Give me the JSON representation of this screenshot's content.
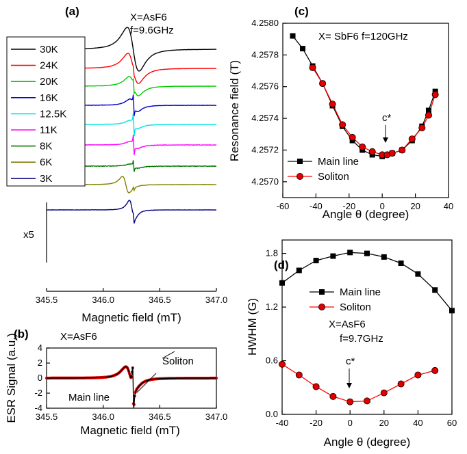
{
  "chart_data": [
    {
      "panel": "(a)",
      "type": "line",
      "title": "",
      "annotations": [
        "X=AsF6",
        "f=9.6GHz"
      ],
      "xlabel": "Magnetic field (mT)",
      "ylabel": "",
      "xlim": [
        345.5,
        347.0
      ],
      "xticks": [
        "345.5",
        "346.0",
        "346.5",
        "347.0"
      ],
      "legend_position": "top-left",
      "scale_note": "x5",
      "series": [
        {
          "name": "30K",
          "color": "#000000",
          "kind": "broad",
          "center": 346.265,
          "halfwidth": 0.09,
          "amp": 32,
          "offset": 72,
          "narrow_amp": 0,
          "noise": 0.3
        },
        {
          "name": "24K",
          "color": "#ff0000",
          "kind": "broad",
          "center": 346.265,
          "halfwidth": 0.08,
          "amp": 22,
          "offset": 100,
          "narrow_amp": 4,
          "noise": 0.3
        },
        {
          "name": "20K",
          "color": "#00cc00",
          "kind": "broad",
          "center": 346.27,
          "halfwidth": 0.07,
          "amp": 14,
          "offset": 126,
          "narrow_amp": 8,
          "noise": 0.4
        },
        {
          "name": "16K",
          "color": "#0000cc",
          "kind": "broad",
          "center": 346.27,
          "halfwidth": 0.06,
          "amp": 9,
          "offset": 154,
          "narrow_amp": 14,
          "noise": 0.5
        },
        {
          "name": "12.5K",
          "color": "#00e5e5",
          "kind": "broad",
          "center": 346.27,
          "halfwidth": 0.06,
          "amp": 6,
          "offset": 182,
          "narrow_amp": 16,
          "noise": 0.5
        },
        {
          "name": "11K",
          "color": "#ff00ff",
          "kind": "broad",
          "center": 346.27,
          "halfwidth": 0.06,
          "amp": 5,
          "offset": 212,
          "narrow_amp": 14,
          "noise": 0.6
        },
        {
          "name": "8K",
          "color": "#007a00",
          "kind": "broad",
          "center": 346.27,
          "halfwidth": 0.06,
          "amp": 3,
          "offset": 243,
          "narrow_amp": 8,
          "noise": 0.9
        },
        {
          "name": "6K",
          "color": "#808000",
          "kind": "broad",
          "center": 346.2,
          "halfwidth": 0.05,
          "amp": 12,
          "offset": 270,
          "narrow_amp": 3,
          "noise": 0.4
        },
        {
          "name": "3K",
          "color": "#000080",
          "kind": "broad",
          "center": 346.255,
          "halfwidth": 0.04,
          "amp": 14,
          "offset": 307,
          "narrow_amp": 6,
          "noise": 0.4
        }
      ]
    },
    {
      "panel": "(b)",
      "type": "line",
      "title": "",
      "annotations": [
        "X=AsF6",
        "Soliton",
        "Main line"
      ],
      "xlabel": "Magnetic field (mT)",
      "ylabel": "ESR Signal (a.u.)",
      "xlim": [
        345.5,
        347.0
      ],
      "ylim": [
        -4,
        4
      ],
      "xticks": [
        "345.5",
        "346.0",
        "346.5",
        "347.0"
      ],
      "yticks": [
        "-4",
        "-2",
        "0",
        "2",
        "4"
      ],
      "main_line": {
        "center": 346.24,
        "halfwidth": 0.07,
        "peak": 1.5
      },
      "soliton": {
        "center": 346.265,
        "halfwidth": 0.008,
        "peak": 3.3
      }
    },
    {
      "panel": "(c)",
      "type": "line",
      "title": "",
      "annotations": [
        "X= SbF6  f=120GHz",
        "c*"
      ],
      "xlabel": "Angle θ (degree)",
      "ylabel": "Resonance field (T)",
      "xlim": [
        -60,
        40
      ],
      "ylim": [
        4.2569,
        4.258
      ],
      "xticks": [
        -60,
        -40,
        -20,
        0,
        20,
        40
      ],
      "yticks": [
        "4.2570",
        "4.2572",
        "4.2574",
        "4.2576",
        "4.2578",
        "4.2580"
      ],
      "legend_position": "bottom-left",
      "series": [
        {
          "name": "Main line",
          "color": "#000000",
          "marker": "square",
          "x": [
            -54,
            -48,
            -42,
            -36,
            -30,
            -24,
            -18,
            -12,
            -6,
            0,
            6,
            12,
            18,
            24,
            28,
            32
          ],
          "y": [
            4.25792,
            4.25784,
            4.25773,
            4.25762,
            4.25748,
            4.25735,
            4.25726,
            4.2572,
            4.25717,
            4.25716,
            4.25718,
            4.2572,
            4.25726,
            4.25735,
            4.25745,
            4.25757
          ]
        },
        {
          "name": "Soliton",
          "color": "#ff0000",
          "marker": "circle",
          "x": [
            -42,
            -36,
            -30,
            -24,
            -18,
            -12,
            -6,
            0,
            3,
            6,
            12,
            18,
            24,
            28,
            32
          ],
          "y": [
            4.25772,
            4.25762,
            4.25749,
            4.25736,
            4.25728,
            4.25722,
            4.25719,
            4.25717,
            4.25717,
            4.25718,
            4.2572,
            4.25727,
            4.25734,
            4.25742,
            4.25755
          ]
        }
      ]
    },
    {
      "panel": "(d)",
      "type": "line",
      "title": "",
      "annotations": [
        "X=AsF6",
        "f=9.7GHz",
        "c*"
      ],
      "xlabel": "Angle θ (degree)",
      "ylabel": "HWHM (G)",
      "xlim": [
        -40,
        60
      ],
      "ylim": [
        0.0,
        1.95
      ],
      "xticks": [
        -40,
        -20,
        0,
        20,
        40,
        60
      ],
      "yticks": [
        "0.0",
        "0.6",
        "1.2",
        "1.8"
      ],
      "legend_position": "top-left",
      "series": [
        {
          "name": "Main line",
          "color": "#000000",
          "marker": "square",
          "x": [
            -40,
            -30,
            -20,
            -10,
            0,
            10,
            20,
            30,
            40,
            50,
            60
          ],
          "y": [
            1.47,
            1.61,
            1.72,
            1.77,
            1.81,
            1.8,
            1.76,
            1.69,
            1.57,
            1.39,
            1.16
          ]
        },
        {
          "name": "Soliton",
          "color": "#ff0000",
          "marker": "circle",
          "x": [
            -40,
            -30,
            -20,
            -10,
            0,
            10,
            20,
            30,
            40,
            50
          ],
          "y": [
            0.56,
            0.44,
            0.31,
            0.2,
            0.14,
            0.15,
            0.24,
            0.34,
            0.44,
            0.49
          ]
        }
      ]
    }
  ]
}
